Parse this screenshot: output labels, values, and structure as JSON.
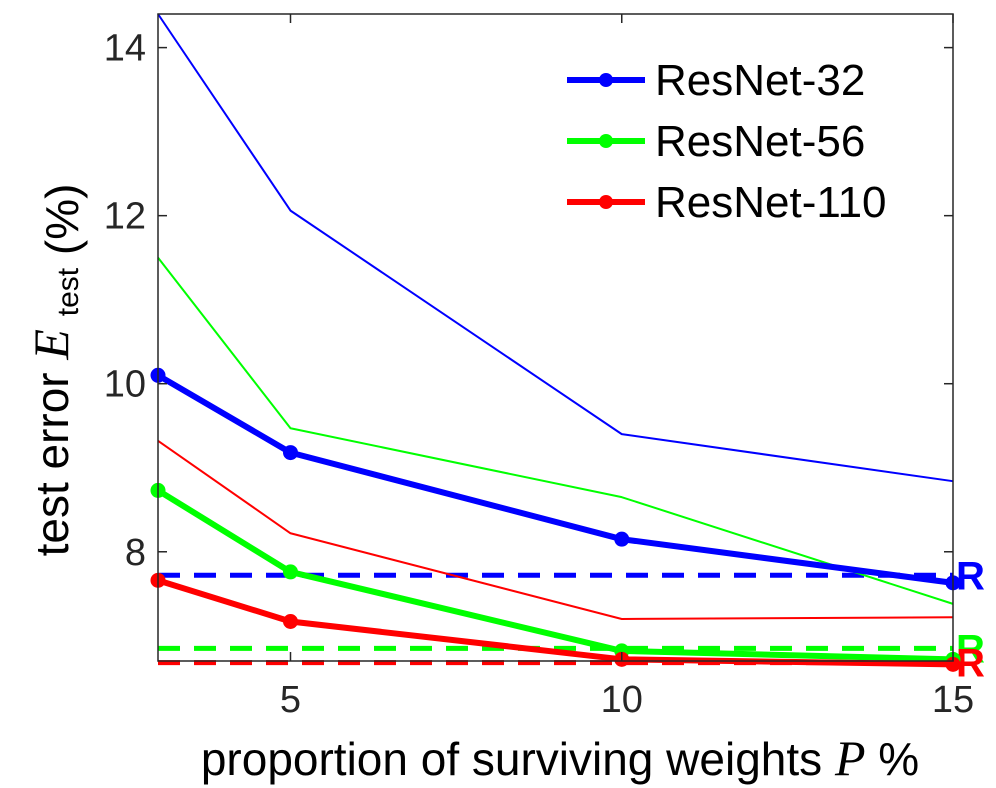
{
  "chart_data": {
    "type": "line",
    "xlabel": "proportion of surviving weights",
    "xlabel_var": "P",
    "xlabel_unit": "%",
    "ylabel": "test error",
    "ylabel_var": "E",
    "ylabel_sub": "test",
    "ylabel_unit": "(%)",
    "xlim": [
      3,
      15
    ],
    "ylim": [
      6.7,
      14.4
    ],
    "xticks": [
      5,
      10,
      15
    ],
    "yticks": [
      8,
      10,
      12,
      14
    ],
    "xtick_labels": [
      "5",
      "10",
      "15"
    ],
    "ytick_labels": [
      "8",
      "10",
      "12",
      "14"
    ],
    "grid": false,
    "legend_position": "top-right",
    "series": [
      {
        "name": "ResNet-32",
        "color": "#0000ff",
        "style": "bold-marker",
        "x": [
          3,
          5,
          10,
          15
        ],
        "y": [
          10.1,
          9.18,
          8.15,
          7.63
        ]
      },
      {
        "name": "ResNet-56",
        "color": "#00ff00",
        "style": "bold-marker",
        "x": [
          3,
          5,
          10,
          15
        ],
        "y": [
          8.73,
          7.76,
          6.82,
          6.72
        ]
      },
      {
        "name": "ResNet-110",
        "color": "#ff0000",
        "style": "bold-marker",
        "x": [
          3,
          5,
          10,
          15
        ],
        "y": [
          7.66,
          7.17,
          6.72,
          6.66
        ]
      },
      {
        "color": "#0000ff",
        "style": "thin",
        "x": [
          3,
          5,
          10,
          15
        ],
        "y": [
          14.4,
          12.06,
          9.4,
          8.84
        ]
      },
      {
        "color": "#00ff00",
        "style": "thin",
        "x": [
          3,
          5,
          10,
          15
        ],
        "y": [
          11.5,
          9.47,
          8.65,
          7.38
        ]
      },
      {
        "color": "#ff0000",
        "style": "thin",
        "x": [
          3,
          5,
          10,
          15
        ],
        "y": [
          9.32,
          8.22,
          7.2,
          7.22
        ]
      }
    ],
    "reference_lines": [
      {
        "color": "#0000ff",
        "y": 7.72,
        "label": "R"
      },
      {
        "color": "#00ff00",
        "y": 6.85,
        "label": "R"
      },
      {
        "color": "#ff0000",
        "y": 6.68,
        "label": "R"
      }
    ]
  }
}
